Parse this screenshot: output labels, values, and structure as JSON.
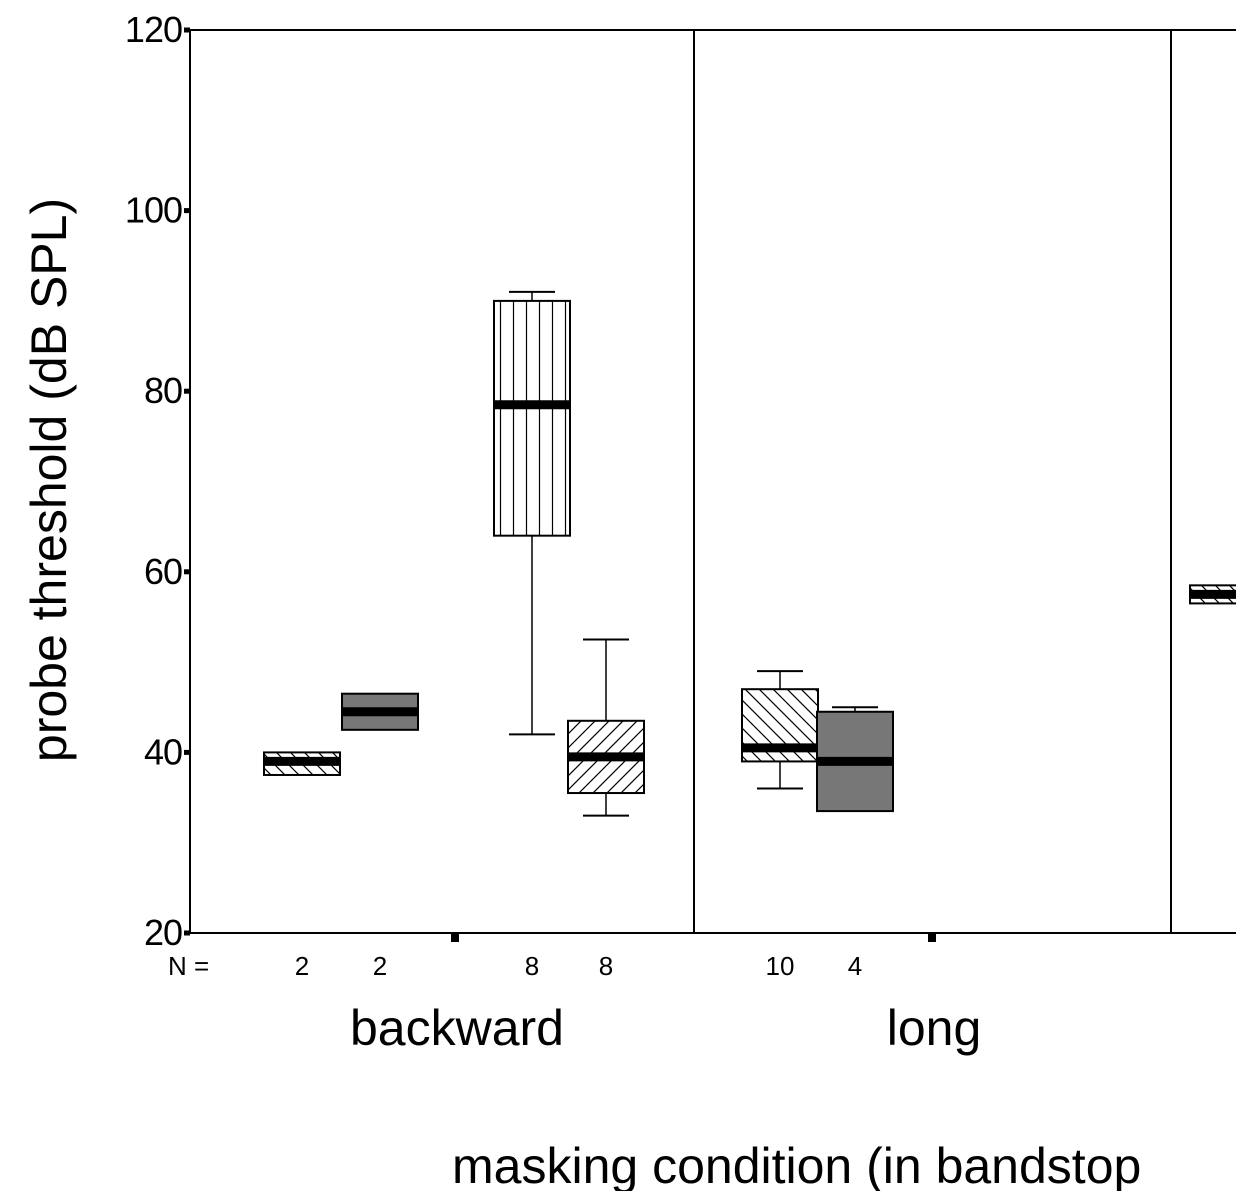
{
  "chart_data": {
    "type": "box",
    "ylabel": "probe threshold (dB SPL)",
    "xlabel": "masking condition (in bandstop",
    "ylim": [
      20,
      120
    ],
    "yticks": [
      20,
      40,
      60,
      80,
      100,
      120
    ],
    "n_prefix": "N =",
    "groups": [
      {
        "label": "backward",
        "boxes": [
          {
            "pattern": "diag-down",
            "n": "2",
            "whisker_low": 37.5,
            "q1": 37.5,
            "median": 39,
            "q3": 40,
            "whisker_high": 40
          },
          {
            "pattern": "solid-gray",
            "n": "2",
            "whisker_low": 42.5,
            "q1": 42.5,
            "median": 44.5,
            "q3": 46.5,
            "whisker_high": 46.5
          },
          {
            "pattern": "vertical",
            "n": "8",
            "whisker_low": 42,
            "q1": 64,
            "median": 78.5,
            "q3": 90,
            "whisker_high": 91
          },
          {
            "pattern": "diag-up",
            "n": "8",
            "whisker_low": 33,
            "q1": 35.5,
            "median": 39.5,
            "q3": 43.5,
            "whisker_high": 52.5
          }
        ]
      },
      {
        "label": "long",
        "boxes": [
          {
            "pattern": "diag-down",
            "n": "10",
            "whisker_low": 36,
            "q1": 39,
            "median": 40.5,
            "q3": 47,
            "whisker_high": 49
          },
          {
            "pattern": "solid-gray",
            "n": "4",
            "whisker_low": 33.5,
            "q1": 33.5,
            "median": 39,
            "q3": 44.5,
            "whisker_high": 45
          }
        ]
      },
      {
        "label": "",
        "boxes": [
          {
            "pattern": "diag-down",
            "n": "",
            "whisker_low": 56.5,
            "q1": 56.5,
            "median": 57.5,
            "q3": 58.5,
            "whisker_high": 58.5
          }
        ]
      }
    ],
    "colors": {
      "gray_fill": "#777777",
      "stroke": "#000000"
    }
  }
}
